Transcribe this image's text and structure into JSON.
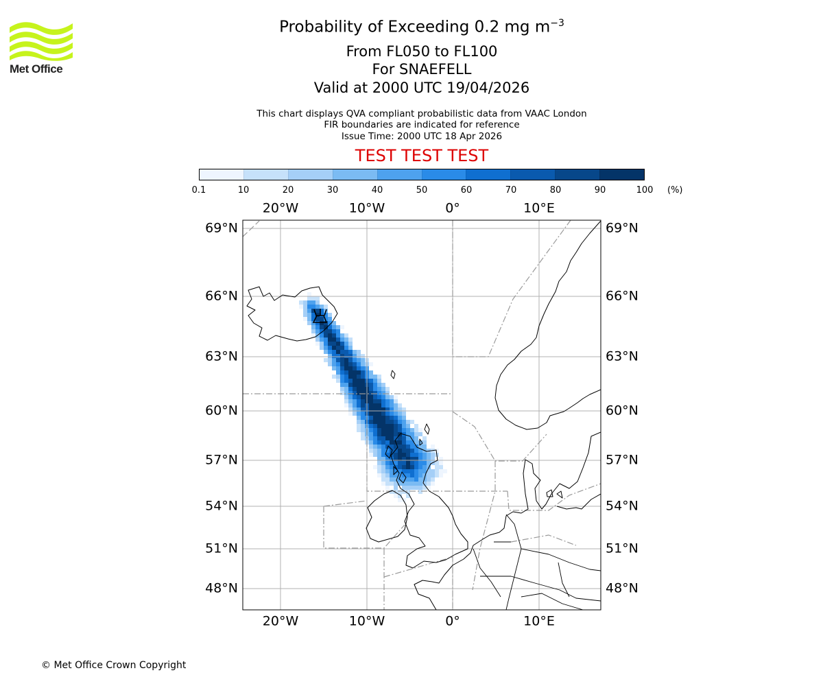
{
  "header": {
    "title_main": "Probability of Exceeding 0.2 mg m",
    "title_exp": "−3",
    "level_range": "From FL050 to FL100",
    "volcano": "For SNAEFELL",
    "valid": "Valid at 2000 UTC 19/04/2026",
    "note1": "This chart displays QVA compliant probabilistic data from VAAC London",
    "note2": "FIR boundaries are indicated for reference",
    "note3": "Issue Time: 2000 UTC 18 Apr 2026",
    "test_banner": "TEST TEST TEST"
  },
  "logo": {
    "brand": "Met Office",
    "color": "#c6f31c"
  },
  "colorbar": {
    "ticks": [
      "0.1",
      "10",
      "20",
      "30",
      "40",
      "50",
      "60",
      "70",
      "80",
      "90",
      "100"
    ],
    "unit": "(%)",
    "colors": [
      "#eef5fe",
      "#c6e1fa",
      "#a5cff7",
      "#7bbbf3",
      "#4ea2ee",
      "#2a8be8",
      "#0f6fd0",
      "#0a5aae",
      "#07478a",
      "#043468"
    ]
  },
  "map": {
    "lon_labels": [
      "20°W",
      "10°W",
      "0°",
      "10°E"
    ],
    "lat_labels": [
      "69°N",
      "66°N",
      "63°N",
      "60°N",
      "57°N",
      "54°N",
      "51°N",
      "48°N"
    ],
    "volcano_symbol": "volcano-icon",
    "gridline_color": "#b0b0b0",
    "fir_color": "#999999"
  },
  "footer": {
    "copyright": "© Met Office Crown Copyright"
  }
}
